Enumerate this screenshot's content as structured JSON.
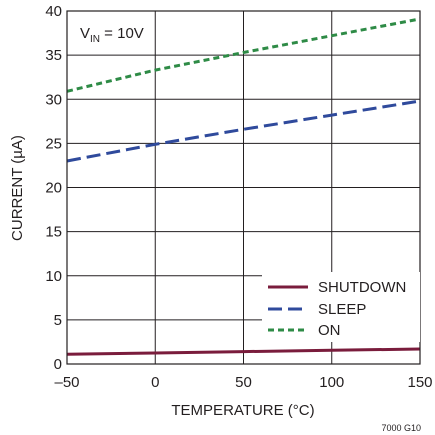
{
  "chart_data": {
    "type": "line",
    "annotation": {
      "prefix": "V",
      "subscript": "IN",
      "suffix": " = 10V"
    },
    "xlabel": "TEMPERATURE (°C)",
    "ylabel": "CURRENT (µA)",
    "xlim": [
      -50,
      150
    ],
    "ylim": [
      0,
      40
    ],
    "xticks": [
      -50,
      0,
      50,
      100,
      150
    ],
    "yticks": [
      0,
      5,
      10,
      15,
      20,
      25,
      30,
      35,
      40
    ],
    "xtick_labels": [
      "–50",
      "0",
      "50",
      "100",
      "150"
    ],
    "ytick_labels": [
      "0",
      "5",
      "10",
      "15",
      "20",
      "25",
      "30",
      "35",
      "40"
    ],
    "grid": true,
    "legend_position": "bottom-right",
    "figure_id": "7000 G10",
    "series": [
      {
        "name": "SHUTDOWN",
        "color": "#7a1c3c",
        "dash": "solid",
        "x": [
          -50,
          0,
          50,
          100,
          150
        ],
        "y": [
          1.1,
          1.25,
          1.4,
          1.55,
          1.7
        ]
      },
      {
        "name": "SLEEP",
        "color": "#2f4a9c",
        "dash": "long-dash",
        "x": [
          -50,
          0,
          50,
          100,
          150
        ],
        "y": [
          23.0,
          24.9,
          26.6,
          28.2,
          29.8
        ]
      },
      {
        "name": "ON",
        "color": "#2e8b46",
        "dash": "short-dash",
        "x": [
          -50,
          0,
          50,
          100,
          150
        ],
        "y": [
          30.9,
          33.3,
          35.3,
          37.2,
          39.1
        ]
      }
    ]
  }
}
